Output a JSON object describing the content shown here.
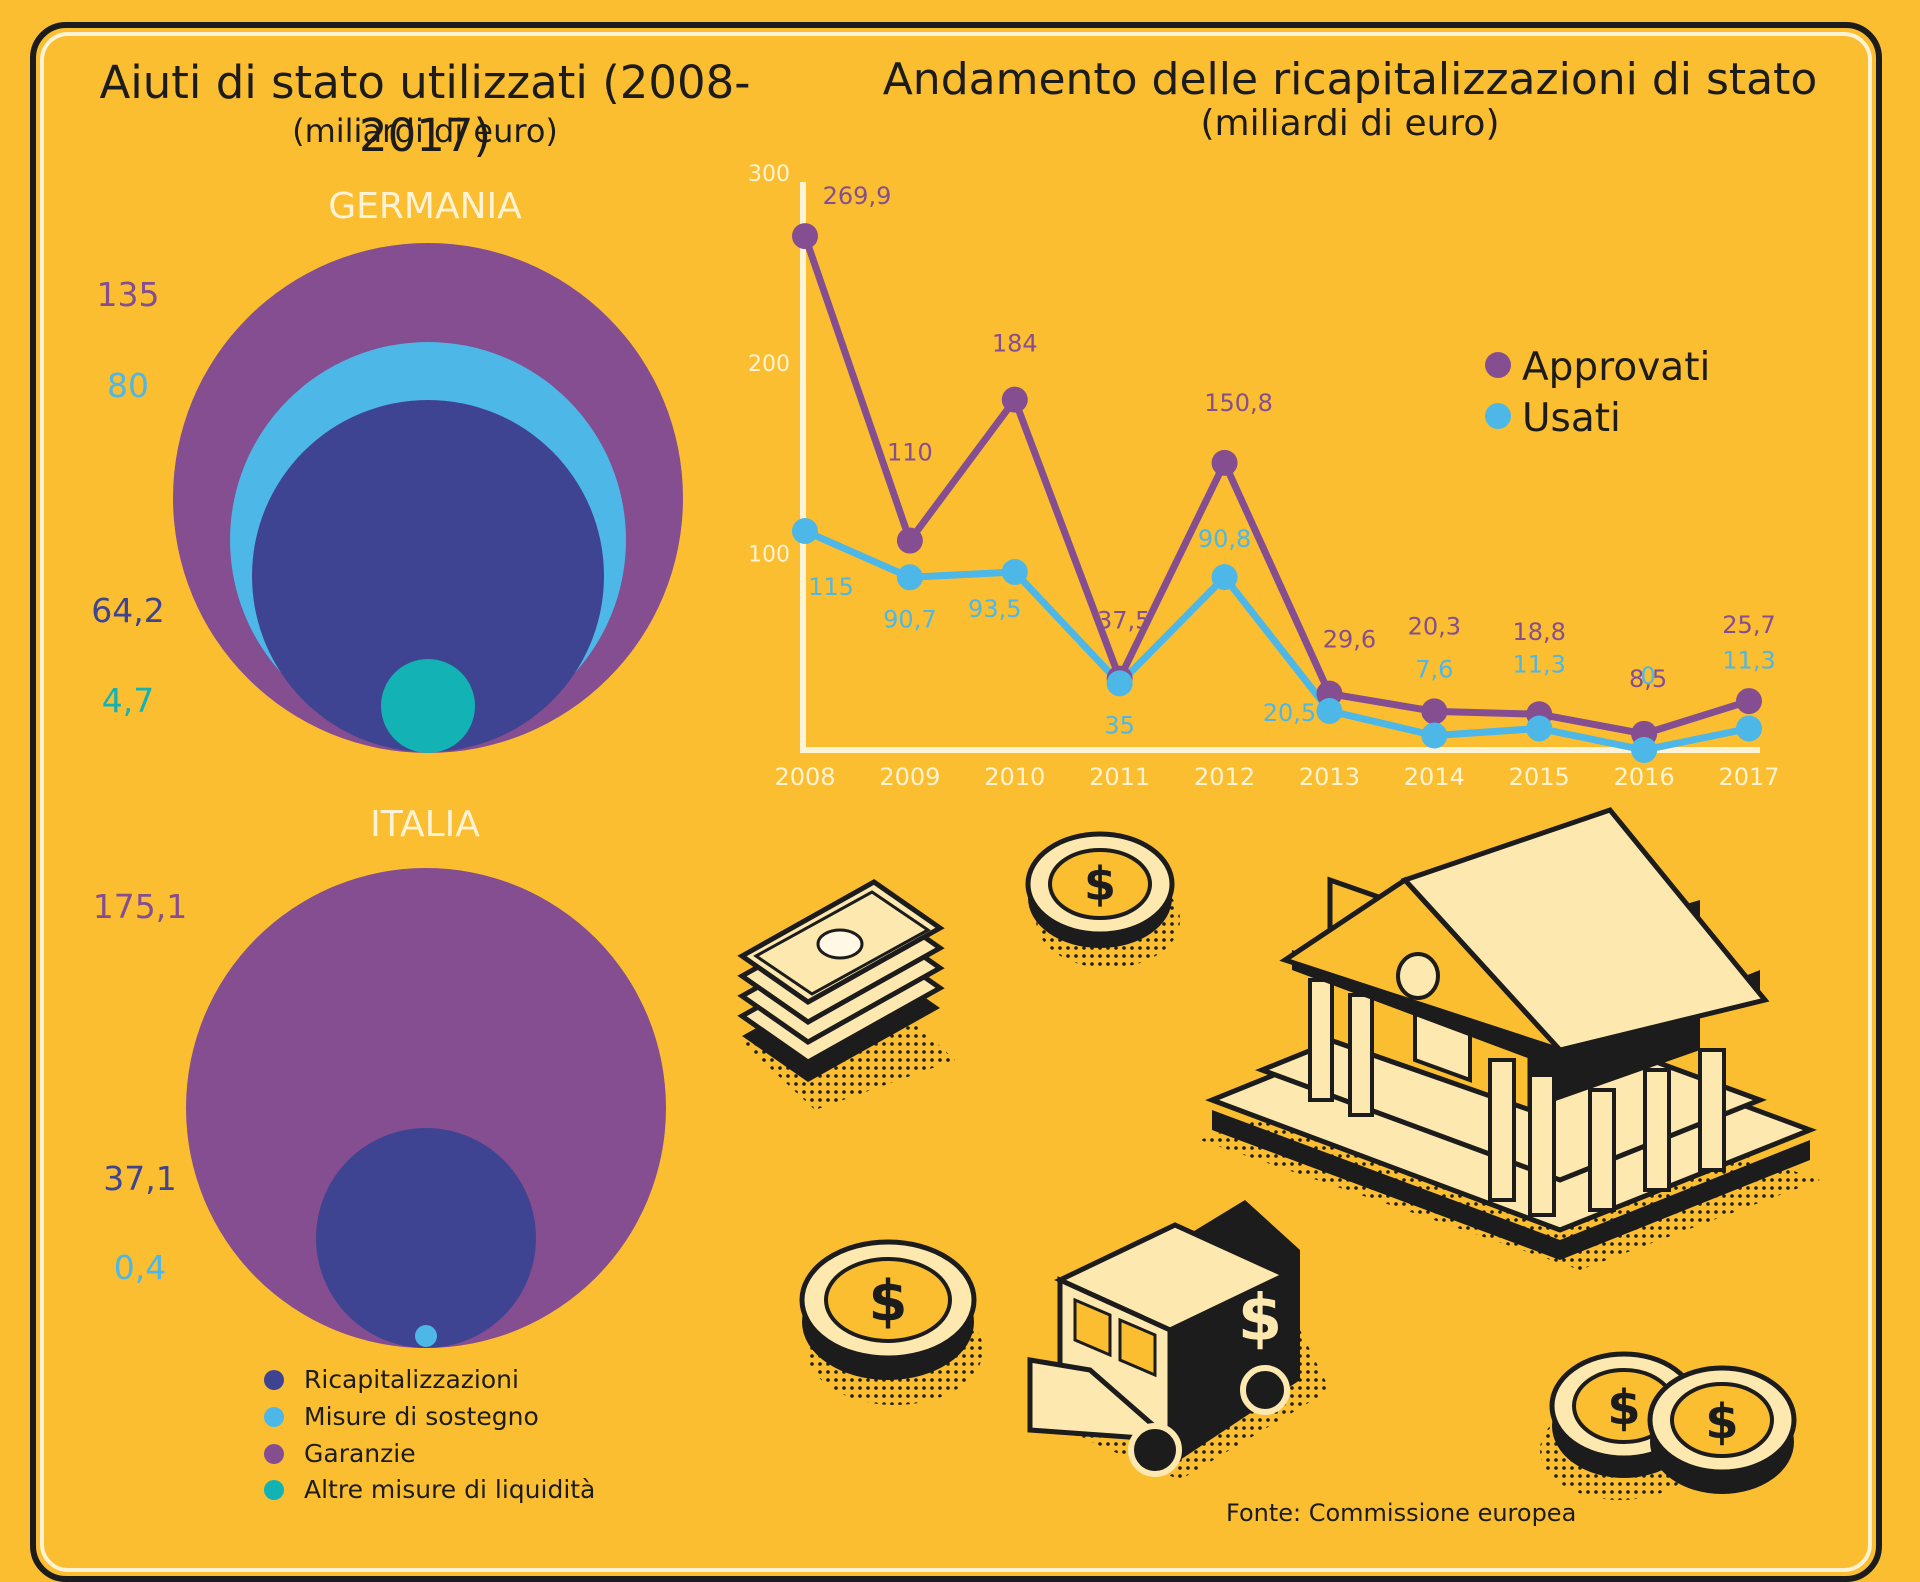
{
  "left": {
    "title": "Aiuti di stato utilizzati (2008-2017)",
    "subtitle": "(miliardi di euro)",
    "germany": {
      "label": "GERMANIA",
      "values": [
        "135",
        "80",
        "64,2",
        "4,7"
      ]
    },
    "italy": {
      "label": "ITALIA",
      "values": [
        "175,1",
        "37,1",
        "0,4"
      ]
    }
  },
  "legend": [
    {
      "label": "Ricapitalizzazioni",
      "color": "#3f4492"
    },
    {
      "label": "Misure di sostegno",
      "color": "#4db7e8"
    },
    {
      "label": "Garanzie",
      "color": "#844e90"
    },
    {
      "label": "Altre misure di liquidità",
      "color": "#13b2b5"
    }
  ],
  "right": {
    "title": "Andamento delle ricapitalizzazioni di stato",
    "subtitle": "(miliardi di euro)"
  },
  "chart_data": {
    "type": "line",
    "x": [
      "2008",
      "2009",
      "2010",
      "2011",
      "2012",
      "2013",
      "2014",
      "2015",
      "2016",
      "2017"
    ],
    "ylim": [
      0,
      300
    ],
    "yticks": [
      "100",
      "200",
      "300"
    ],
    "series": [
      {
        "name": "Approvati",
        "color": "#844e90",
        "values": [
          269.9,
          110,
          184,
          37.5,
          150.8,
          29.6,
          20.3,
          18.8,
          8.5,
          25.7
        ],
        "labels": [
          "269,9",
          "110",
          "184",
          "37,5",
          "150,8",
          "29,6",
          "20,3",
          "18,8",
          "8,5",
          "25,7"
        ]
      },
      {
        "name": "Usati",
        "color": "#4db7e8",
        "values": [
          115,
          90.7,
          93.5,
          35,
          90.8,
          20.5,
          7.6,
          11.3,
          0,
          11.3
        ],
        "labels": [
          "115",
          "90,7",
          "93,5",
          "35",
          "90,8",
          "20,5",
          "7,6",
          "11,3",
          "0",
          "11,3"
        ]
      }
    ]
  },
  "source": "Fonte: Commissione europea",
  "colors": {
    "background": "#fbbe30",
    "garanzie": "#844e90",
    "ricapitalizzazioni": "#3f4492",
    "sostegno": "#4db7e8",
    "liquidita": "#13b2b5"
  }
}
